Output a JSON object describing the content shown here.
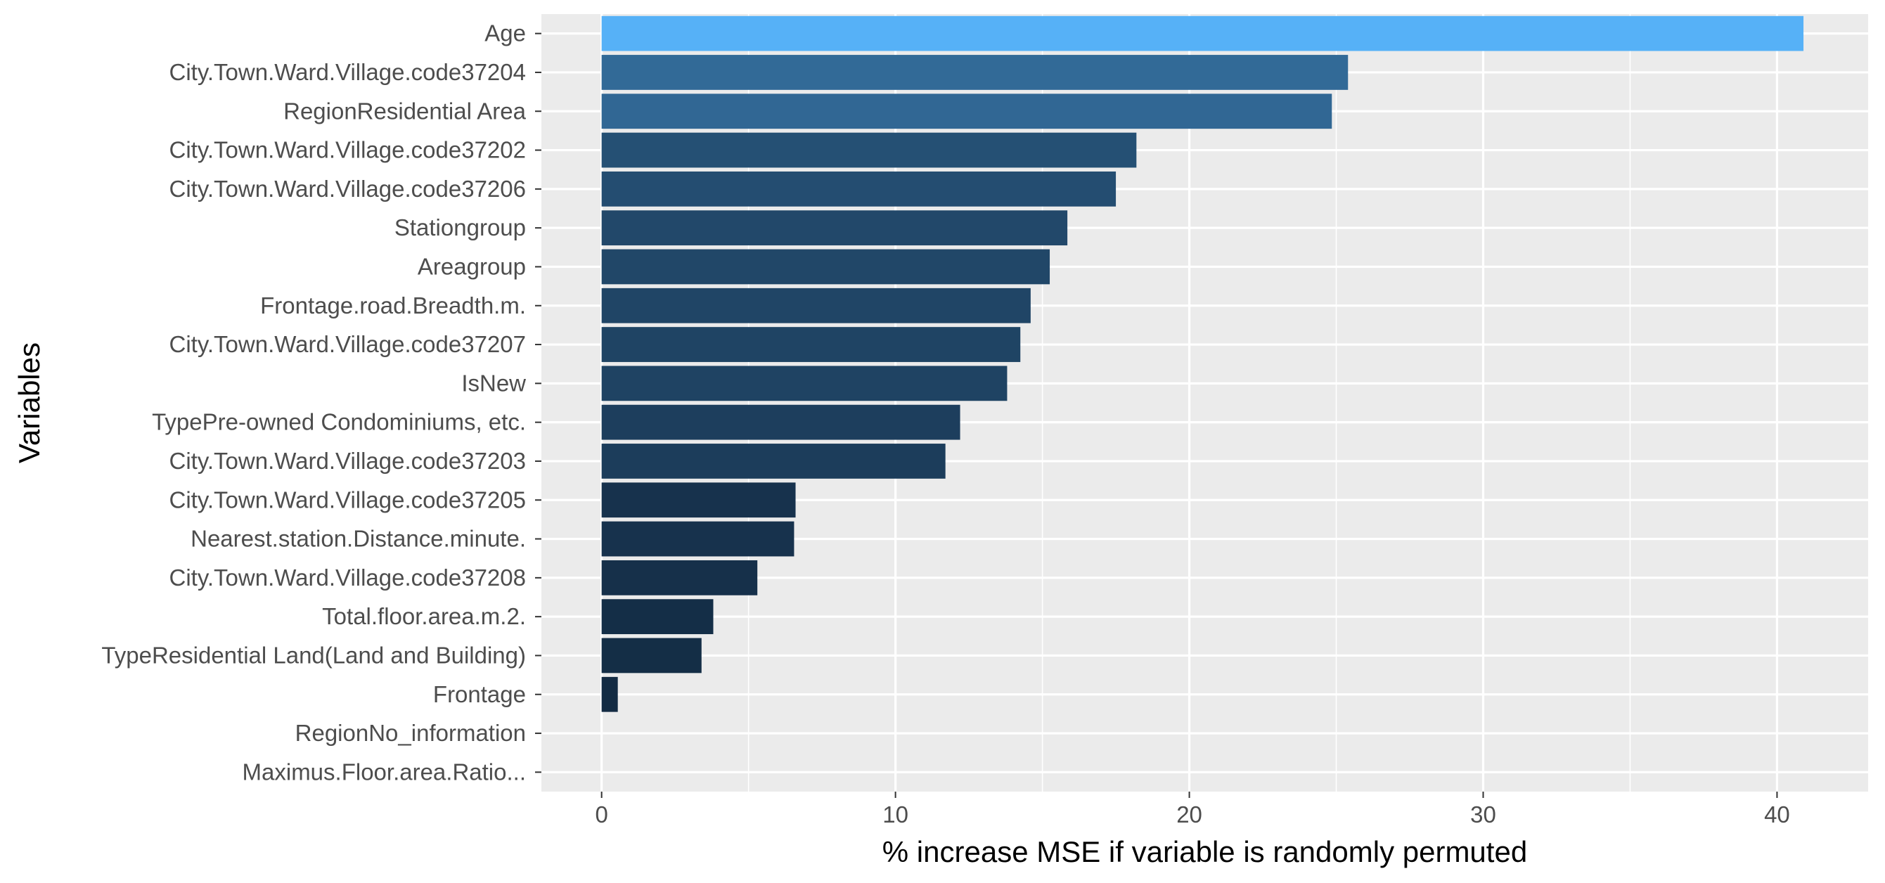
{
  "chart_data": {
    "type": "bar",
    "orientation": "horizontal",
    "title": "",
    "xlabel": "% increase MSE if variable is randomly permuted",
    "ylabel": "Variables",
    "xlim": [
      -2.05,
      43.1
    ],
    "x_ticks": [
      0,
      10,
      20,
      30,
      40
    ],
    "x_tick_labels": [
      "0",
      "10",
      "20",
      "30",
      "40"
    ],
    "grid": true,
    "legend": "none",
    "categories": [
      "Age",
      "City.Town.Ward.Village.code37204",
      "RegionResidential Area",
      "City.Town.Ward.Village.code37202",
      "City.Town.Ward.Village.code37206",
      "Stationgroup",
      "Areagroup",
      "Frontage.road.Breadth.m.",
      "City.Town.Ward.Village.code37207",
      "IsNew",
      "TypePre-owned Condominiums, etc.",
      "City.Town.Ward.Village.code37203",
      "City.Town.Ward.Village.code37205",
      "Nearest.station.Distance.minute.",
      "City.Town.Ward.Village.code37208",
      "Total.floor.area.m.2.",
      "TypeResidential Land(Land and Building)",
      "Frontage",
      "RegionNo_information",
      "Maximus.Floor.area.Ratio..."
    ],
    "values": [
      40.9,
      25.4,
      24.85,
      18.2,
      17.5,
      15.85,
      15.25,
      14.6,
      14.25,
      13.8,
      12.2,
      11.7,
      6.6,
      6.55,
      5.3,
      3.8,
      3.4,
      0.55,
      0.0,
      0.0
    ],
    "color_scale": {
      "low": "#132B43",
      "high": "#56B1F7"
    }
  },
  "colors": {
    "panel_bg": "#EBEBEB",
    "grid_major": "#FFFFFF",
    "tick_text": "#4D4D4D",
    "tick_mark": "#333333",
    "title_text": "#000000"
  }
}
